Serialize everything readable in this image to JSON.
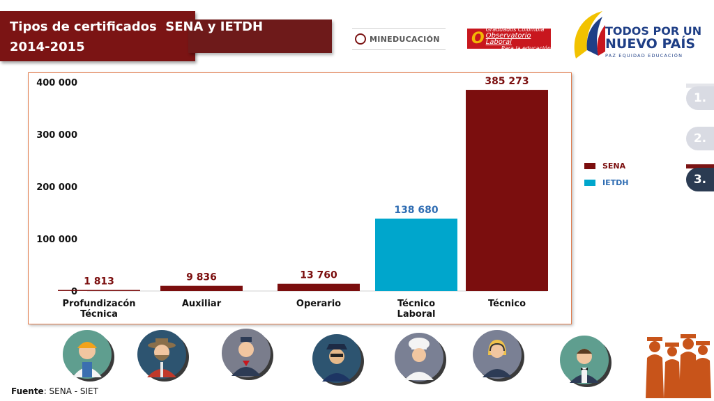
{
  "header": {
    "title_line1": "Tipos de certificados  SENA y IETDH",
    "title_line2": "2014-2015"
  },
  "logos": {
    "mineducacion": "MINEDUCACIÓN",
    "observatorio_top": "Graduados Colombia",
    "observatorio_main": "Observatorio Laboral",
    "observatorio_bottom": "Para la educación",
    "gov_line1": "TODOS POR UN",
    "gov_line2": "NUEVO PAÍS",
    "gov_sub": "PAZ  EQUIDAD  EDUCACIÓN"
  },
  "nav": [
    {
      "label": "1.",
      "active": false
    },
    {
      "label": "2.",
      "active": false
    },
    {
      "label": "3.",
      "active": true
    }
  ],
  "colors": {
    "sena": "#7b0e0e",
    "ietdh": "#00a6cc",
    "label_sena": "#7b0e0e",
    "label_ietdh": "#2f6db3",
    "nav_inactive": "#d9dbe3",
    "nav_active": "#2b3b52"
  },
  "chart_data": {
    "type": "bar",
    "categories": [
      "Profundizacón\nTécnica",
      "Auxiliar",
      "Operario",
      "Técnico\nLaboral",
      "Técnico"
    ],
    "values": [
      1813,
      9836,
      13760,
      138680,
      385273
    ],
    "value_labels": [
      "1 813",
      "9 836",
      "13 760",
      "138 680",
      "385 273"
    ],
    "bar_series": [
      "SENA",
      "SENA",
      "SENA",
      "IETDH",
      "SENA"
    ],
    "series_names": [
      "SENA",
      "IETDH"
    ],
    "yticks": [
      0,
      100000,
      200000,
      300000,
      400000
    ],
    "ytick_labels": [
      "0",
      "100 000",
      "200 000",
      "300 000",
      "400 000"
    ],
    "ylim": [
      0,
      400000
    ],
    "grid": false,
    "legend_position": "right"
  },
  "footer": {
    "source_label": "Fuente",
    "source_text": ": SENA - SIET"
  },
  "avatars": [
    {
      "name": "worker-helmet",
      "bg": "#5f9e8f"
    },
    {
      "name": "farmer-glasses",
      "bg": "#2d5470"
    },
    {
      "name": "flight-attendant",
      "bg": "#7a7d8c"
    },
    {
      "name": "police-officer",
      "bg": "#2d5470"
    },
    {
      "name": "chef",
      "bg": "#7a8094"
    },
    {
      "name": "receptionist-headset",
      "bg": "#7a8094"
    },
    {
      "name": "waiter",
      "bg": "#5f9e8f"
    }
  ]
}
